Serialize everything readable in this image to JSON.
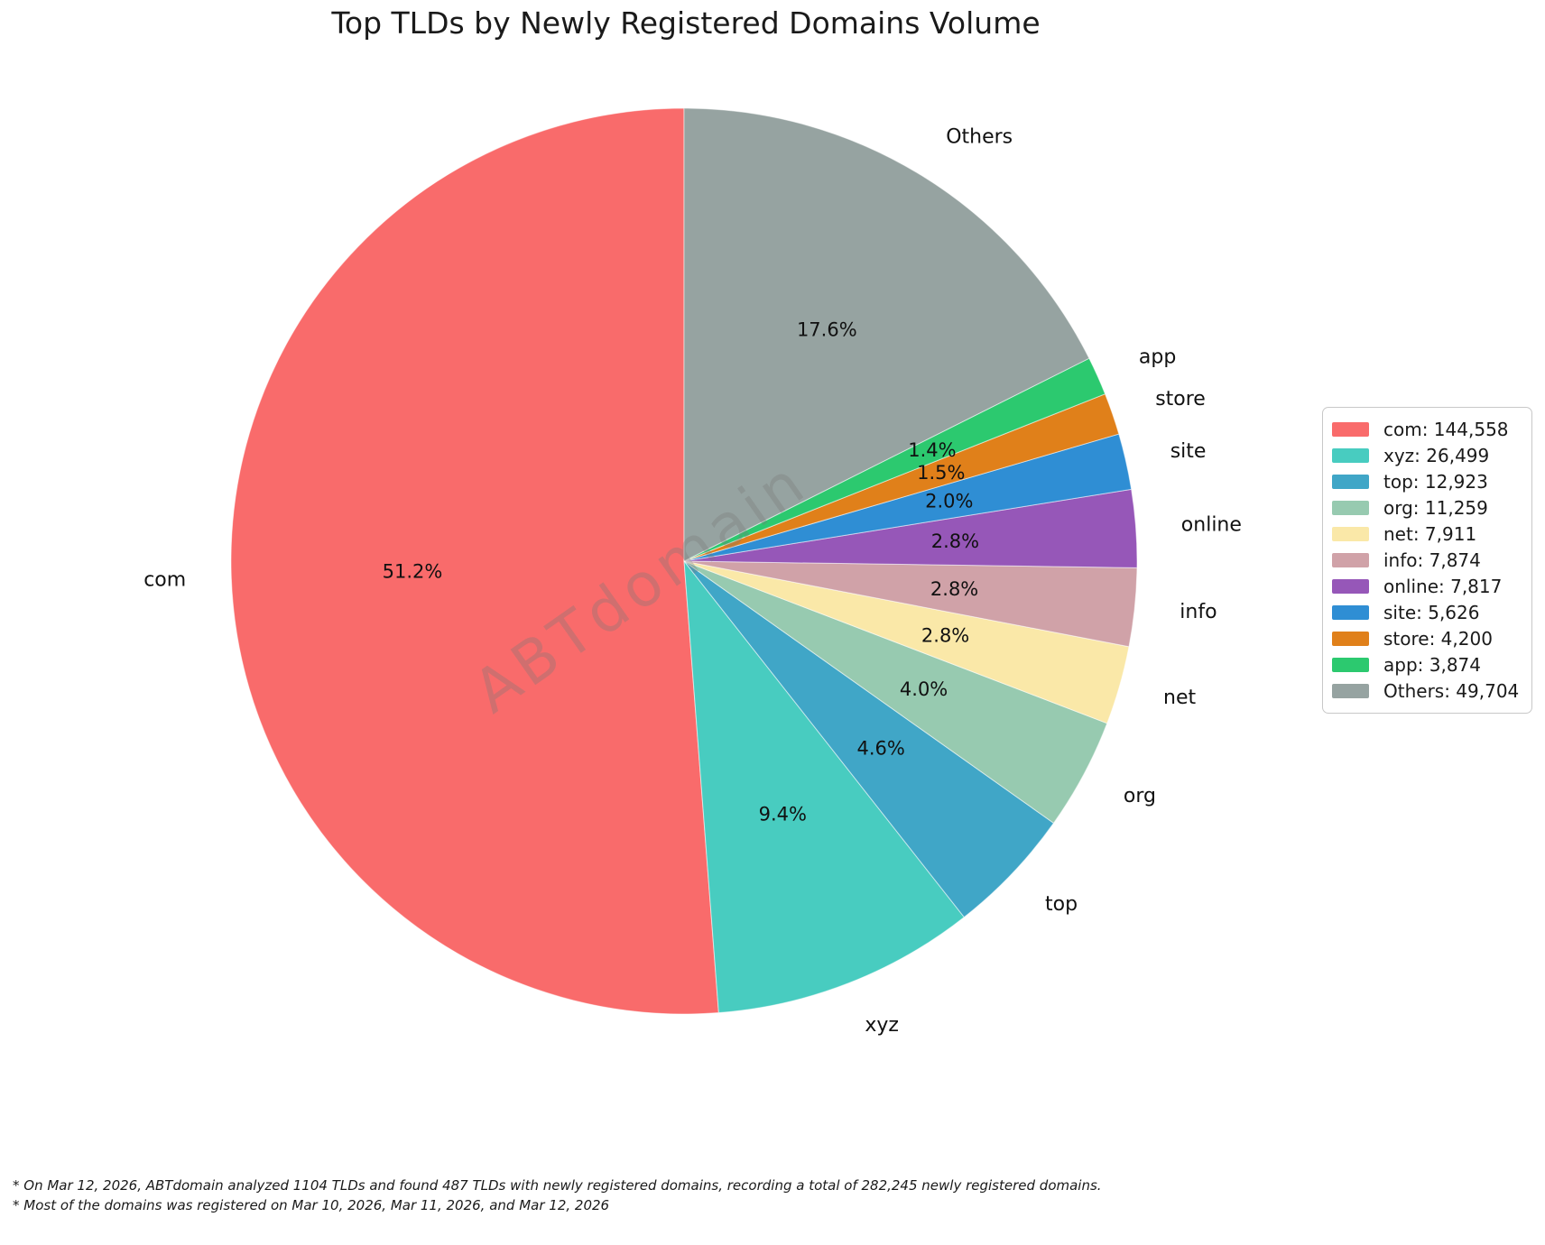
{
  "title": "Top TLDs by Newly Registered Domains Volume",
  "watermark": "ABTdomain",
  "footnotes": [
    "* On Mar 12, 2026, ABTdomain analyzed 1104 TLDs and found 487 TLDs with newly registered domains, recording a total of 282,245 newly registered domains.",
    "* Most of the domains was registered on Mar 10, 2026, Mar 11, 2026, and Mar 12, 2026"
  ],
  "chart_data": {
    "type": "pie",
    "title": "Top TLDs by Newly Registered Domains Volume",
    "total": 282245,
    "start_angle_deg": 90,
    "counterclock": true,
    "legend_position": "right",
    "slices": [
      {
        "label": "com",
        "value": 144558,
        "pct_label": "51.2%",
        "color": "#f96b6b",
        "legend_label": "com: 144,558"
      },
      {
        "label": "xyz",
        "value": 26499,
        "pct_label": "9.4%",
        "color": "#48ccc0",
        "legend_label": "xyz: 26,499"
      },
      {
        "label": "top",
        "value": 12923,
        "pct_label": "4.6%",
        "color": "#40a6c7",
        "legend_label": "top: 12,923"
      },
      {
        "label": "org",
        "value": 11259,
        "pct_label": "4.0%",
        "color": "#97cab0",
        "legend_label": "org: 11,259"
      },
      {
        "label": "net",
        "value": 7911,
        "pct_label": "2.8%",
        "color": "#fae8a8",
        "legend_label": "net: 7,911"
      },
      {
        "label": "info",
        "value": 7874,
        "pct_label": "2.8%",
        "color": "#d0a2a8",
        "legend_label": "info: 7,874"
      },
      {
        "label": "online",
        "value": 7817,
        "pct_label": "2.8%",
        "color": "#9657b8",
        "legend_label": "online: 7,817"
      },
      {
        "label": "site",
        "value": 5626,
        "pct_label": "2.0%",
        "color": "#2f8ed4",
        "legend_label": "site: 5,626"
      },
      {
        "label": "store",
        "value": 4200,
        "pct_label": "1.5%",
        "color": "#e0801a",
        "legend_label": "store: 4,200"
      },
      {
        "label": "app",
        "value": 3874,
        "pct_label": "1.4%",
        "color": "#2cc96f",
        "legend_label": "app: 3,874"
      },
      {
        "label": "Others",
        "value": 49704,
        "pct_label": "17.6%",
        "color": "#96a3a1",
        "legend_label": "Others: 49,704"
      }
    ]
  }
}
